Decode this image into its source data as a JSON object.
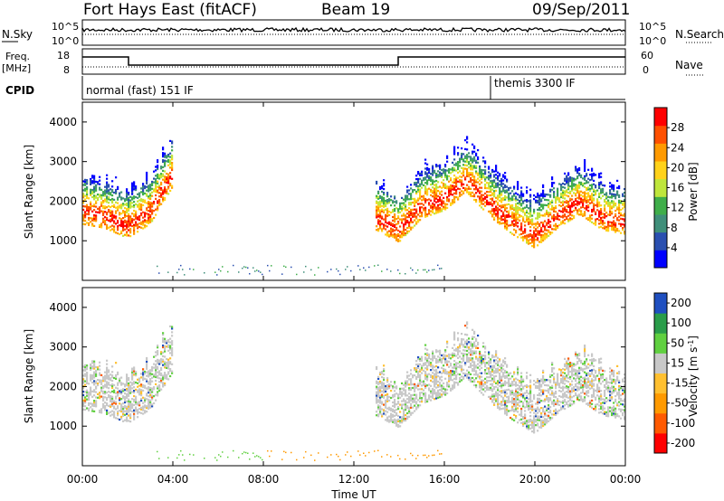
{
  "header": {
    "station": "Fort Hays East (fitACF)",
    "beam": "Beam 19",
    "date": "09/Sep/2011"
  },
  "labels": {
    "nsky": "N.Sky",
    "nsearch": "N.Search",
    "freq_line1": "Freq.",
    "freq_line2": "[MHz]",
    "nave": "Nave",
    "cpid": "CPID",
    "noise_tick_top_left": "10^5",
    "noise_tick_bottom_left": "10^0",
    "noise_tick_top_right": "10^5",
    "noise_tick_bottom_right": "10^0",
    "freq_tick_top": "18",
    "freq_tick_bottom": "8",
    "nave_tick_top": "60",
    "nave_tick_bottom": "0",
    "mode_1": "normal (fast) 151 IF",
    "mode_2": "themis 3300 IF"
  },
  "colors": {
    "power_scale": [
      "#0000ff",
      "#2a4fb0",
      "#3f8f7a",
      "#3fae4a",
      "#bfe63c",
      "#ffd21a",
      "#ff9a00",
      "#ff5000",
      "#ff0000"
    ],
    "velocity_scale": [
      "#ff0000",
      "#ff5a00",
      "#ff9a00",
      "#ffc030",
      "#c8c8c8",
      "#60d040",
      "#2a9d4a",
      "#1f4fc0"
    ]
  },
  "chart_data": [
    {
      "type": "heatmap",
      "quantity": "Power",
      "ylabel": "Slant Range [km]",
      "xlabel": "Time UT",
      "xticks": [
        "00:00",
        "04:00",
        "08:00",
        "12:00",
        "16:00",
        "20:00",
        "00:00"
      ],
      "yticks": [
        "1000",
        "2000",
        "3000",
        "4000"
      ],
      "ylim": [
        0,
        4500
      ],
      "colorbar_label": "Power [dB]",
      "colorbar_ticks": [
        "4",
        "8",
        "12",
        "16",
        "20",
        "24",
        "28"
      ],
      "colorbar_range": [
        0,
        31
      ],
      "bands": [
        {
          "t": [
            0,
            1,
            2,
            3,
            4
          ],
          "r": [
            1750,
            1650,
            1400,
            1750,
            2700
          ]
        },
        {
          "t": [
            13,
            14,
            15,
            16,
            17,
            18,
            19,
            20,
            21,
            22,
            23,
            24
          ],
          "r": [
            1600,
            1300,
            1900,
            2100,
            2550,
            1950,
            1500,
            1150,
            1650,
            2000,
            1600,
            1500
          ]
        }
      ]
    },
    {
      "type": "heatmap",
      "quantity": "Velocity",
      "ylabel": "Slant Range [km]",
      "xlabel": "Time UT",
      "xticks": [
        "00:00",
        "04:00",
        "08:00",
        "12:00",
        "16:00",
        "20:00",
        "00:00"
      ],
      "yticks": [
        "1000",
        "2000",
        "3000",
        "4000"
      ],
      "ylim": [
        0,
        4500
      ],
      "colorbar_label": "Velocity [m s^-1]",
      "colorbar_ticks": [
        "200",
        "100",
        "50",
        "15",
        "-15",
        "-50",
        "-100",
        "-200"
      ],
      "colorbar_range": [
        -250,
        250
      ]
    }
  ]
}
